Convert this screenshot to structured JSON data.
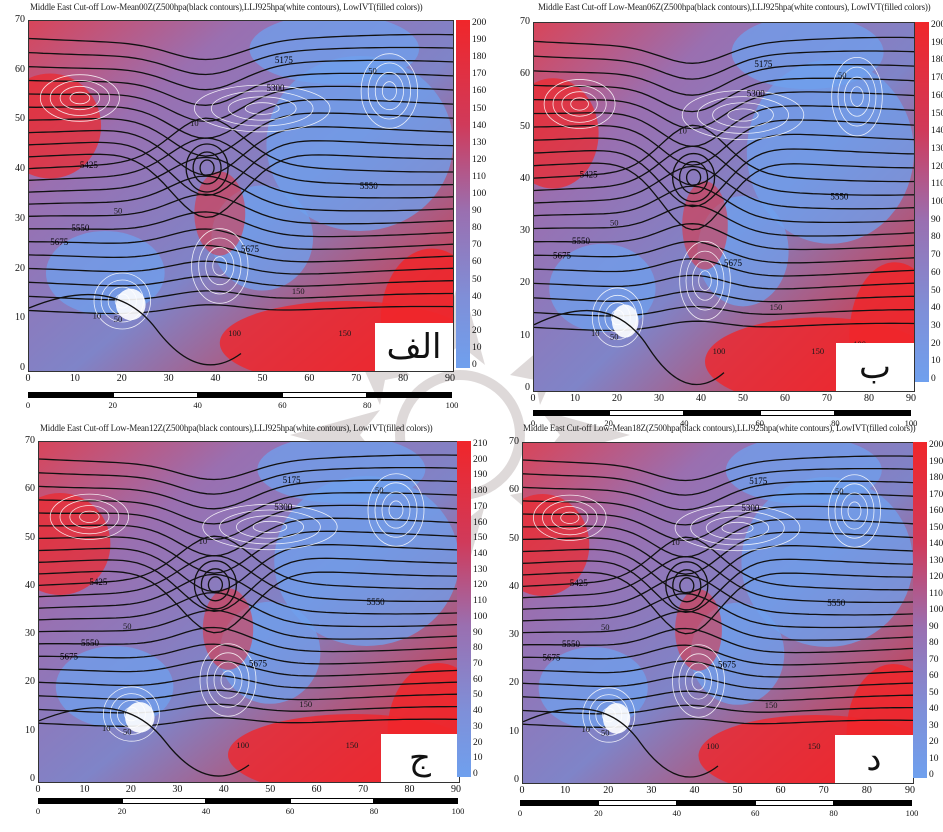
{
  "panels": [
    {
      "title": "Middle East Cut-off Low-Mean00Z(Z500hpa(black contours),LLJ925hpa(white contours), LowIVT(filled colors))",
      "letter": "الف",
      "y_ticks": [
        "70",
        "60",
        "50",
        "40",
        "30",
        "20",
        "10",
        "0"
      ],
      "x_ticks": [
        "0",
        "10",
        "20",
        "30",
        "40",
        "50",
        "60",
        "70",
        "80",
        "90"
      ],
      "colorbar_ticks": [
        "200",
        "190",
        "180",
        "170",
        "160",
        "150",
        "140",
        "130",
        "120",
        "110",
        "100",
        "90",
        "80",
        "70",
        "60",
        "50",
        "40",
        "30",
        "20",
        "10",
        "0"
      ],
      "scale_ticks": [
        "0",
        "20",
        "40",
        "60",
        "80",
        "100"
      ],
      "z500_labels": [
        "5175",
        "5300",
        "5425",
        "5550",
        "5675",
        "5550",
        "5675"
      ],
      "llj_labels": [
        "50",
        "10",
        "50",
        "100",
        "150",
        "10",
        "50",
        "100",
        "150"
      ]
    },
    {
      "title": "Middle East Cut-off Low-Mean06Z(Z500hpa(black contours),LLJ925hpa(white contours), LowIVT(filled colors))",
      "letter": "ب",
      "y_ticks": [
        "70",
        "60",
        "50",
        "40",
        "30",
        "20",
        "10",
        "0"
      ],
      "x_ticks": [
        "0",
        "10",
        "20",
        "30",
        "40",
        "50",
        "60",
        "70",
        "80",
        "90"
      ],
      "colorbar_ticks": [
        "200",
        "190",
        "180",
        "170",
        "160",
        "150",
        "140",
        "130",
        "120",
        "110",
        "100",
        "90",
        "80",
        "70",
        "60",
        "50",
        "40",
        "30",
        "20",
        "10",
        "0"
      ],
      "scale_ticks": [
        "0",
        "20",
        "40",
        "60",
        "80",
        "100"
      ],
      "z500_labels": [
        "5175",
        "5300",
        "5425",
        "5550",
        "5675",
        "5550",
        "5675"
      ],
      "llj_labels": [
        "50",
        "10",
        "50",
        "100",
        "150",
        "10",
        "50",
        "100",
        "150"
      ]
    },
    {
      "title": "Middle East Cut-off Low-Mean12Z(Z500hpa(black contours),LLJ925hpa(white contours), LowIVT(filled colors))",
      "letter": "ج",
      "y_ticks": [
        "70",
        "60",
        "50",
        "40",
        "30",
        "20",
        "10",
        "0"
      ],
      "x_ticks": [
        "0",
        "10",
        "20",
        "30",
        "40",
        "50",
        "60",
        "70",
        "80",
        "90"
      ],
      "colorbar_ticks": [
        "210",
        "200",
        "190",
        "180",
        "170",
        "160",
        "150",
        "140",
        "130",
        "120",
        "110",
        "100",
        "90",
        "80",
        "70",
        "60",
        "50",
        "40",
        "30",
        "20",
        "10",
        "0"
      ],
      "scale_ticks": [
        "0",
        "20",
        "40",
        "60",
        "80",
        "100"
      ],
      "z500_labels": [
        "5175",
        "5300",
        "5425",
        "5550",
        "5675",
        "5550",
        "5675"
      ],
      "llj_labels": [
        "50",
        "10",
        "50",
        "100",
        "150",
        "10",
        "50",
        "100",
        "150"
      ]
    },
    {
      "title": "Middle East Cut-off Low-Mean18Z(Z500hpa(black contours),LLJ925hpa(white contours), LowIVT(filled colors))",
      "letter": "د",
      "y_ticks": [
        "70",
        "60",
        "50",
        "40",
        "30",
        "20",
        "10",
        "0"
      ],
      "x_ticks": [
        "0",
        "10",
        "20",
        "30",
        "40",
        "50",
        "60",
        "70",
        "80",
        "90"
      ],
      "colorbar_ticks": [
        "200",
        "190",
        "180",
        "170",
        "160",
        "150",
        "140",
        "130",
        "120",
        "110",
        "100",
        "90",
        "80",
        "70",
        "60",
        "50",
        "40",
        "30",
        "20",
        "10",
        "0"
      ],
      "scale_ticks": [
        "0",
        "20",
        "40",
        "60",
        "80",
        "100"
      ],
      "z500_labels": [
        "5175",
        "5300",
        "5425",
        "5550",
        "5675",
        "5550",
        "5675"
      ],
      "llj_labels": [
        "50",
        "10",
        "50",
        "100",
        "150",
        "10",
        "50",
        "100",
        "150"
      ]
    }
  ],
  "colors": {
    "ivt_low": "#6fa0ee",
    "ivt_mid": "#9a6fb0",
    "ivt_high": "#f0262a",
    "z500_contour": "#111111",
    "llj_contour": "#ffffff"
  }
}
